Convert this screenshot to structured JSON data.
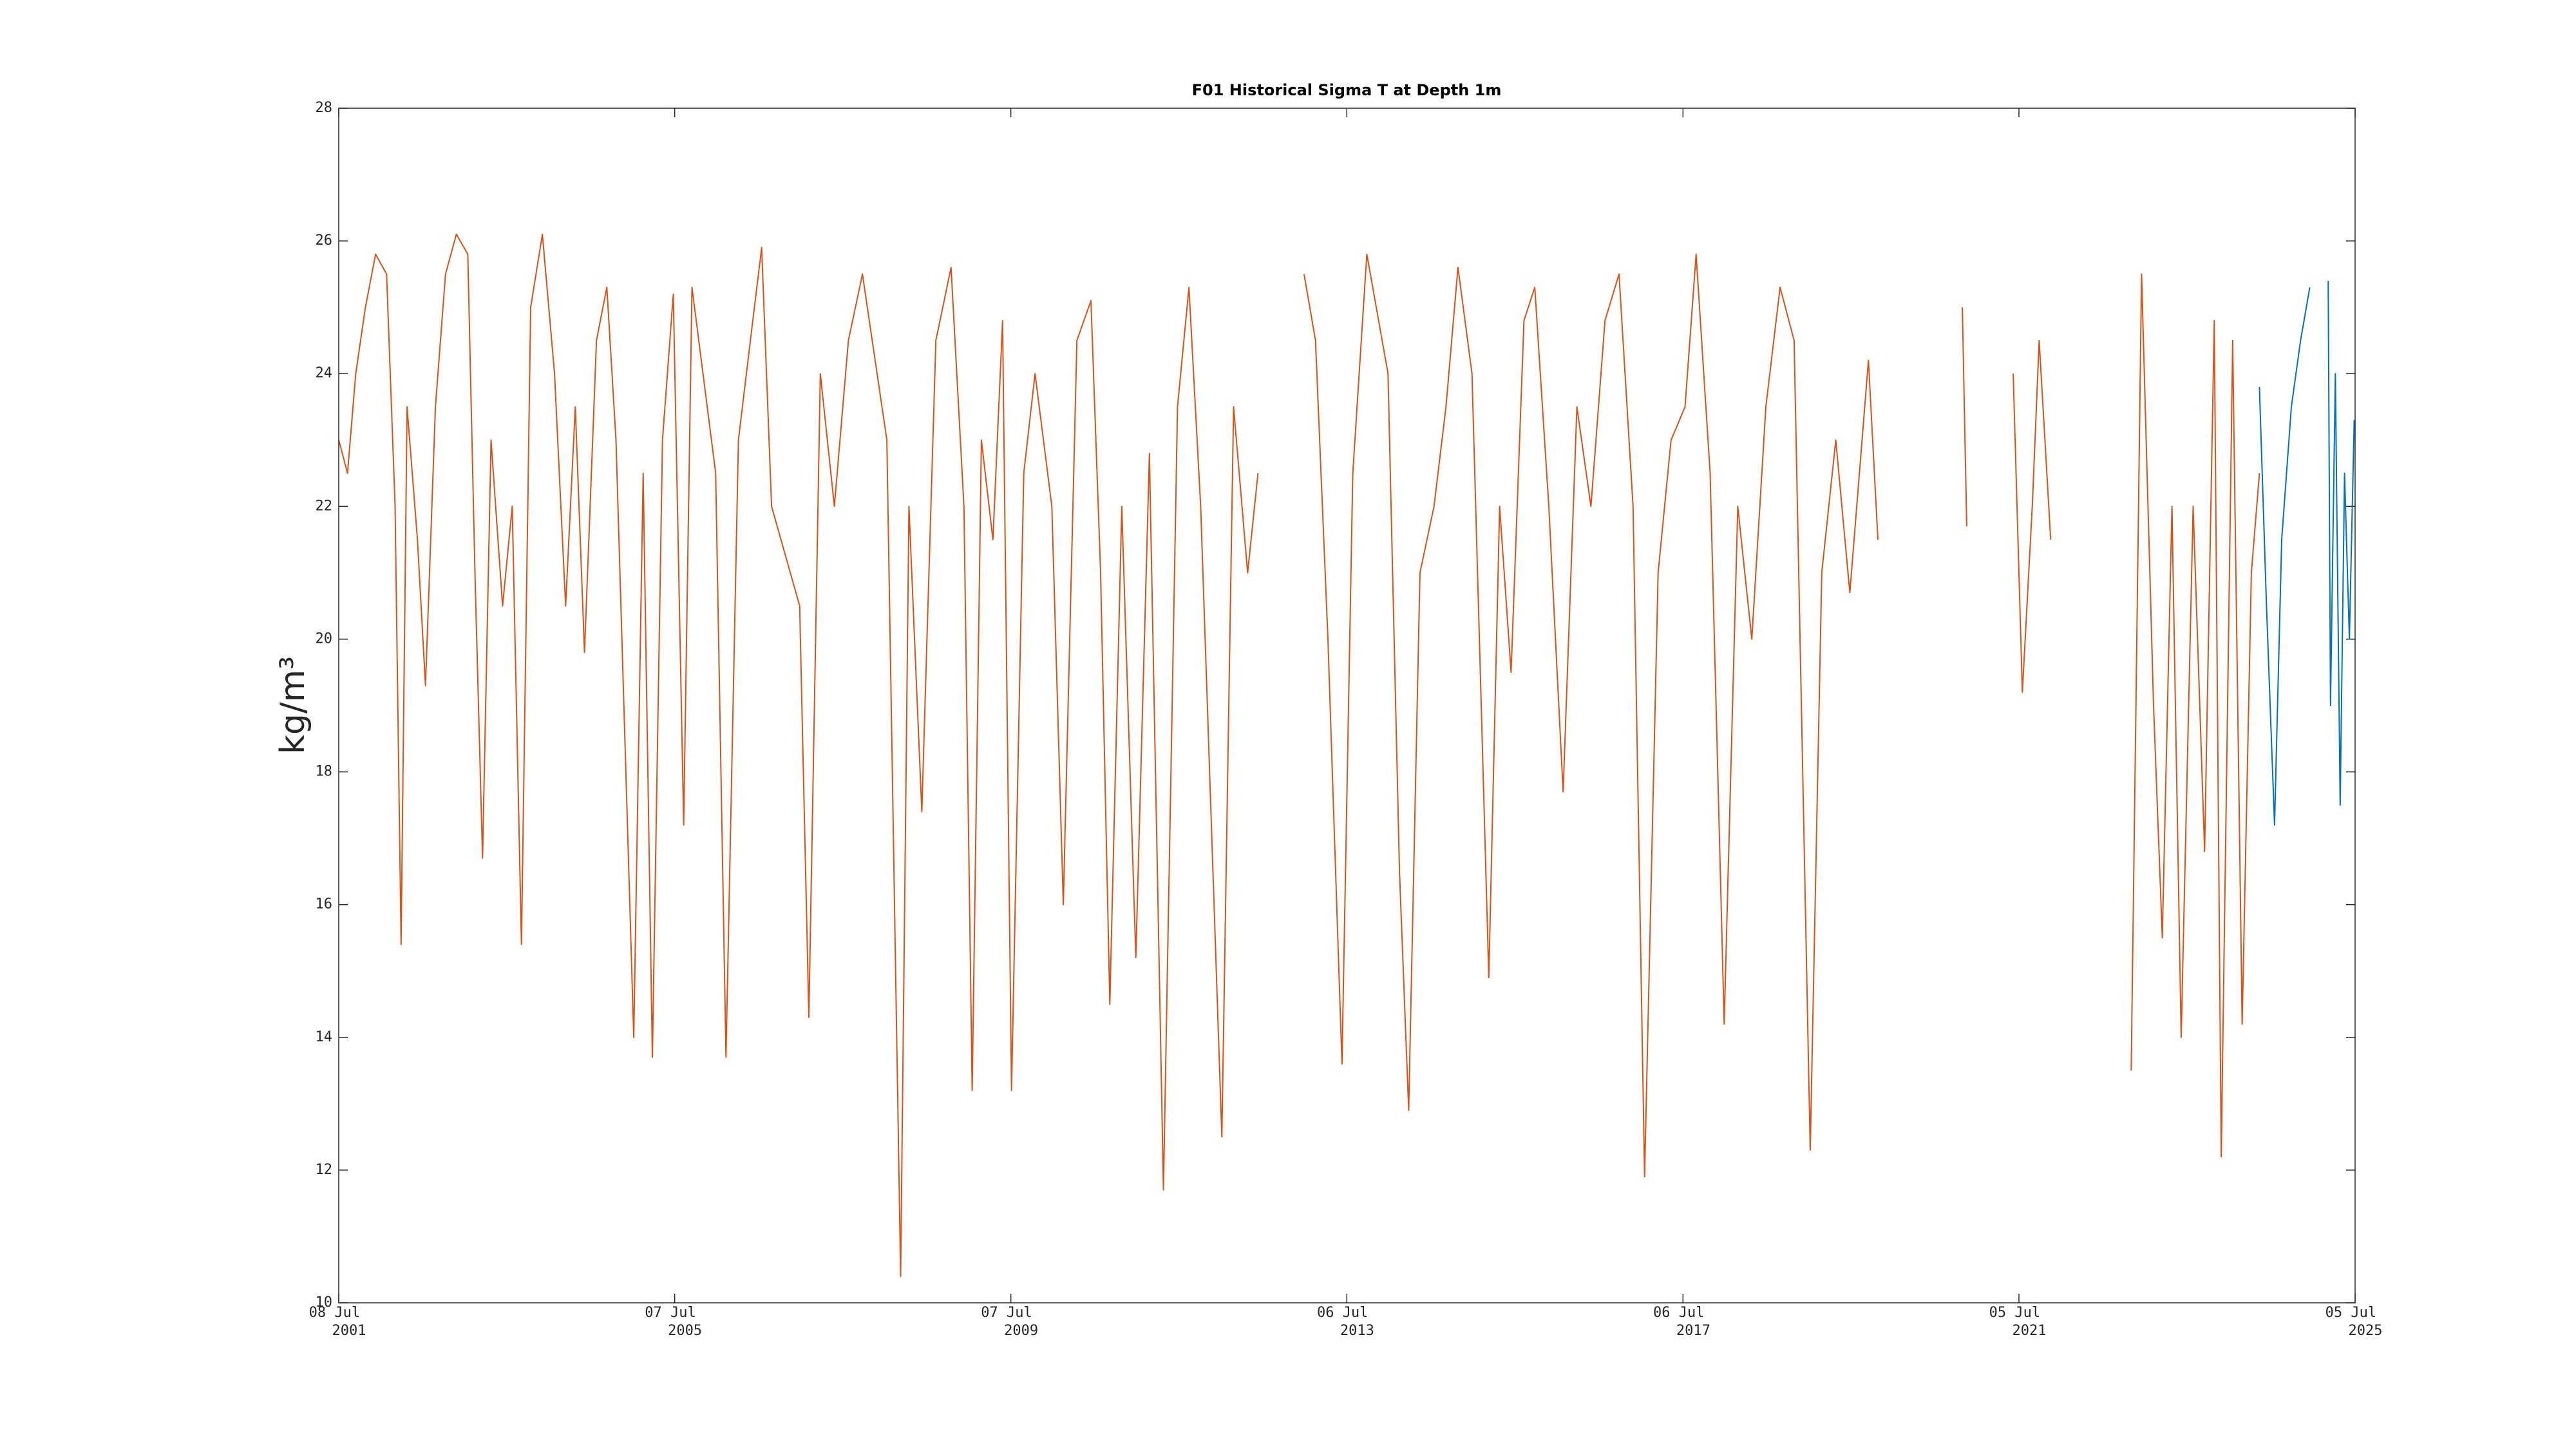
{
  "chart_data": {
    "type": "line",
    "title": "F01 Historical Sigma T at Depth 1m",
    "y_label": "kg/m³",
    "xlim": [
      "2001-07-08",
      "2025-07-05"
    ],
    "xticks": [
      {
        "value": "2001-07-08",
        "label": "08 Jul 2001"
      },
      {
        "value": "2005-07-07",
        "label": "07 Jul 2005"
      },
      {
        "value": "2009-07-07",
        "label": "07 Jul 2009"
      },
      {
        "value": "2013-07-06",
        "label": "06 Jul 2013"
      },
      {
        "value": "2017-07-06",
        "label": "06 Jul 2017"
      },
      {
        "value": "2021-07-05",
        "label": "05 Jul 2021"
      },
      {
        "value": "2025-07-05",
        "label": "05 Jul 2025"
      }
    ],
    "ylim": [
      10,
      28
    ],
    "yticks": [
      10,
      12,
      14,
      16,
      18,
      20,
      22,
      24,
      26,
      28
    ],
    "grid": false,
    "series": [
      {
        "color": "#d95319",
        "x": [
          "2001-07-08",
          "2001-08-15",
          "2001-09-20",
          "2001-11-01",
          "2001-12-15",
          "2002-02-01",
          "2002-03-10",
          "2002-04-05",
          "2002-05-01",
          "2002-06-15",
          "2002-07-20",
          "2002-09-01",
          "2002-10-15",
          "2002-12-01",
          "2003-01-20",
          "2003-02-20",
          "2003-03-25",
          "2003-05-01",
          "2003-06-20",
          "2003-08-01",
          "2003-09-10",
          "2003-10-20",
          "2003-12-10",
          "2004-02-01",
          "2004-03-20",
          "2004-05-01",
          "2004-06-10",
          "2004-08-01",
          "2004-09-15",
          "2004-10-25",
          "2005-01-10",
          "2005-02-20",
          "2005-04-01",
          "2005-05-15",
          "2005-07-01",
          "2005-08-15",
          "2005-09-20",
          "2006-01-01",
          "2006-02-15",
          "2006-04-10",
          "2006-06-01",
          "2006-07-20",
          "2006-09-01",
          "2007-01-01",
          "2007-02-10",
          "2007-04-01",
          "2007-06-01",
          "2007-08-01",
          "2007-10-01",
          "2008-01-15",
          "2008-03-15",
          "2008-04-20",
          "2008-06-15",
          "2008-08-15",
          "2008-10-20",
          "2008-12-15",
          "2009-01-20",
          "2009-03-01",
          "2009-04-20",
          "2009-06-01",
          "2009-07-10",
          "2009-09-01",
          "2009-10-20",
          "2010-01-01",
          "2010-02-20",
          "2010-04-20",
          "2010-06-20",
          "2010-08-01",
          "2010-09-10",
          "2010-11-01",
          "2011-01-01",
          "2011-03-01",
          "2011-05-01",
          "2011-07-01",
          "2011-08-20",
          "2011-10-10",
          "2012-01-10",
          "2012-03-01",
          "2012-05-01",
          "2012-06-15",
          "2012-09-01",
          "2013-01-01",
          "2013-02-20",
          "2013-04-15",
          "2013-06-15",
          "2013-08-01",
          "2013-10-01",
          "2014-01-01",
          "2014-02-20",
          "2014-04-01",
          "2014-05-20",
          "2014-07-20",
          "2014-09-10",
          "2014-11-01",
          "2015-01-01",
          "2015-03-15",
          "2015-05-01",
          "2015-06-20",
          "2015-08-15",
          "2015-10-01",
          "2015-12-01",
          "2016-02-01",
          "2016-04-01",
          "2016-06-01",
          "2016-08-01",
          "2016-10-01",
          "2016-12-01",
          "2017-01-20",
          "2017-03-20",
          "2017-05-15",
          "2017-07-15",
          "2017-09-01",
          "2017-11-01",
          "2018-01-01",
          "2018-03-01",
          "2018-05-01",
          "2018-07-01",
          "2018-09-01",
          "2018-11-01",
          "2019-01-10",
          "2019-03-01",
          "2019-05-01",
          "2019-07-01",
          "2019-09-20",
          "2019-10-31",
          "2020-06-01",
          "2020-11-01",
          "2020-11-20",
          "2021-03-01",
          "2021-06-10",
          "2021-07-20",
          "2021-09-01",
          "2021-10-01",
          "2021-11-20",
          "2022-06-01",
          "2022-11-05",
          "2022-12-20",
          "2023-02-10",
          "2023-03-20",
          "2023-05-01",
          "2023-06-10",
          "2023-08-01",
          "2023-09-20",
          "2023-11-01",
          "2023-12-01",
          "2024-01-20",
          "2024-03-01",
          "2024-04-10",
          "2024-05-15"
        ],
        "values": [
          23.0,
          22.5,
          24,
          25,
          25.8,
          25.5,
          22.0,
          15.4,
          23.5,
          21.5,
          19.3,
          23.5,
          25.5,
          26.1,
          25.8,
          21,
          16.7,
          23,
          20.5,
          22,
          15.4,
          25,
          26.1,
          24,
          20.5,
          23.5,
          19.8,
          24.5,
          25.3,
          23,
          14.0,
          22.5,
          13.7,
          23,
          25.2,
          17.2,
          25.3,
          22.5,
          13.7,
          23,
          24.5,
          25.9,
          22,
          20.5,
          14.3,
          24,
          22,
          24.5,
          25.5,
          23,
          10.4,
          22,
          17.4,
          24.5,
          25.6,
          22,
          13.2,
          23,
          21.5,
          24.8,
          13.2,
          22.5,
          24,
          22,
          16,
          24.5,
          25.1,
          21,
          14.5,
          22,
          15.2,
          22.8,
          11.7,
          23.5,
          25.3,
          22,
          12.5,
          23.5,
          21,
          22.5,
          null,
          25.5,
          24.5,
          20,
          13.6,
          22.5,
          25.8,
          24,
          16.5,
          12.9,
          21,
          22,
          23.5,
          25.6,
          24,
          14.9,
          22,
          19.5,
          24.8,
          25.3,
          22,
          17.7,
          23.5,
          22,
          24.8,
          25.5,
          22,
          11.9,
          21,
          23,
          23.5,
          25.8,
          22.5,
          14.2,
          22,
          20,
          23.5,
          25.3,
          24.5,
          12.3,
          21,
          23,
          20.7,
          24.2,
          21.5,
          null,
          25,
          21.7,
          null,
          24,
          19.2,
          22,
          24.5,
          21.5,
          null,
          13.5,
          25.5,
          19,
          15.5,
          22,
          14,
          22,
          16.8,
          24.8,
          12.2,
          24.5,
          14.2,
          21,
          22.5
        ]
      },
      {
        "color": "#0072bd",
        "x": [
          "2024-05-15",
          "2024-06-15",
          "2024-07-20",
          "2024-08-20",
          "2024-10-01",
          "2024-11-10",
          "2024-12-20",
          "2025-02-15",
          "2025-03-10",
          "2025-03-20",
          "2025-04-10",
          "2025-05-01",
          "2025-05-20",
          "2025-06-10",
          "2025-07-01"
        ],
        "values": [
          23.8,
          20.5,
          17.2,
          21.5,
          23.5,
          24.5,
          25.3,
          null,
          25.4,
          19,
          24,
          17.5,
          22.5,
          20,
          23.3
        ]
      }
    ]
  }
}
